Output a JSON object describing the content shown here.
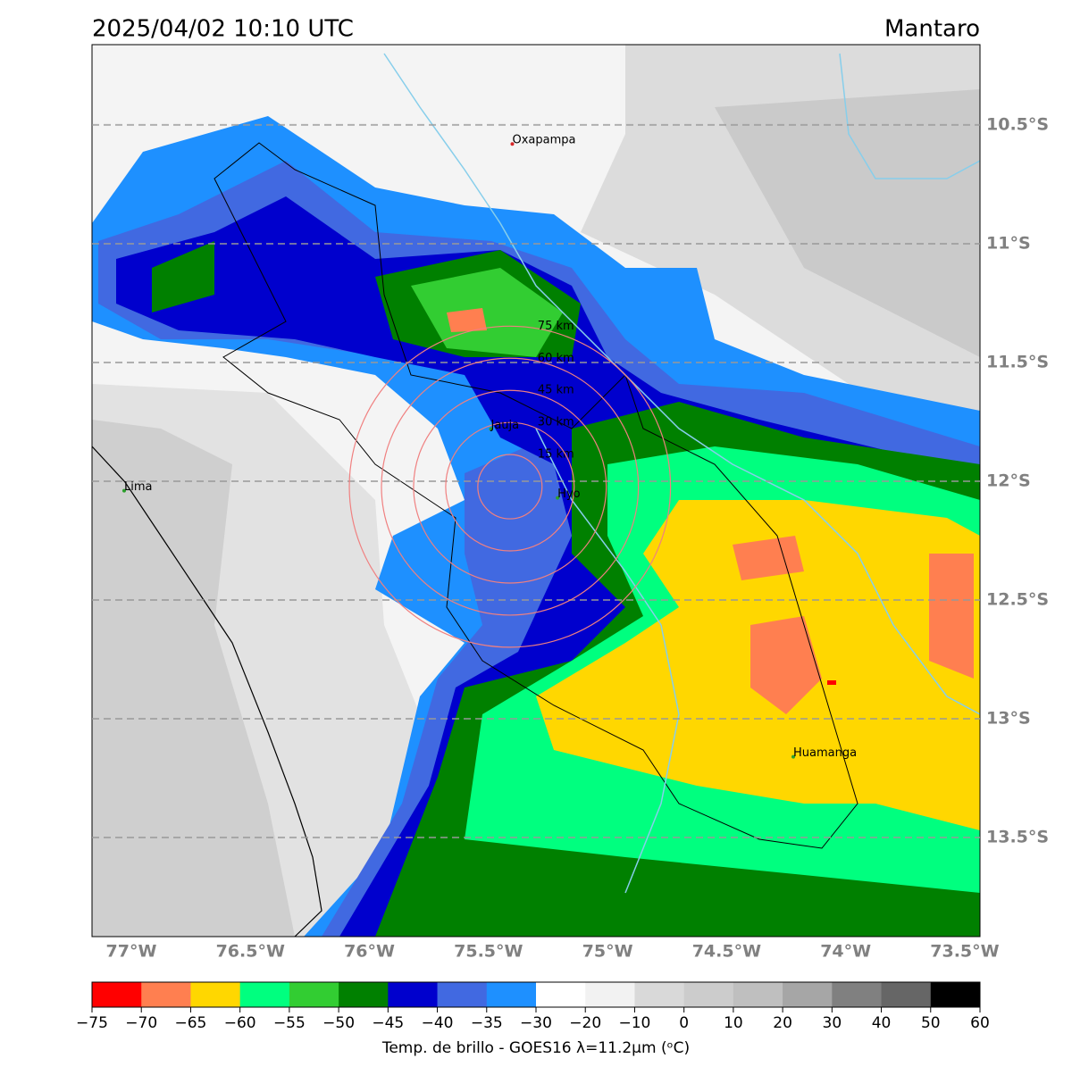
{
  "header": {
    "title": "2025/04/02 10:10 UTC",
    "region": "Mantaro"
  },
  "map": {
    "xlim": [
      -77.165,
      -73.436
    ],
    "ylim": [
      -13.917,
      -10.162
    ],
    "xticks": [
      {
        "value": -77,
        "label": "77°W"
      },
      {
        "value": -76.5,
        "label": "76.5°W"
      },
      {
        "value": -76,
        "label": "76°W"
      },
      {
        "value": -75.5,
        "label": "75.5°W"
      },
      {
        "value": -75,
        "label": "75°W"
      },
      {
        "value": -74.5,
        "label": "74.5°W"
      },
      {
        "value": -74,
        "label": "74°W"
      },
      {
        "value": -73.5,
        "label": "73.5°W"
      }
    ],
    "yticks": [
      {
        "value": -10.5,
        "label": "10.5°S"
      },
      {
        "value": -11,
        "label": "11°S"
      },
      {
        "value": -11.5,
        "label": "11.5°S"
      },
      {
        "value": -12,
        "label": "12°S"
      },
      {
        "value": -12.5,
        "label": "12.5°S"
      },
      {
        "value": -13,
        "label": "13°S"
      },
      {
        "value": -13.5,
        "label": "13.5°S"
      }
    ],
    "grid": true,
    "places": [
      {
        "name": "Oxapampa",
        "lon": -75.4,
        "lat": -10.58,
        "color": "#d62728"
      },
      {
        "name": "Jauja",
        "lon": -75.49,
        "lat": -11.78,
        "color": "#2ca02c"
      },
      {
        "name": "Hyo",
        "lon": -75.21,
        "lat": -12.07,
        "color": "#2ca02c"
      },
      {
        "name": "Lima",
        "lon": -77.03,
        "lat": -12.04,
        "color": "#2ca02c"
      },
      {
        "name": "Huamanga",
        "lon": -74.22,
        "lat": -13.16,
        "color": "#2ca02c"
      }
    ],
    "rings": {
      "lon": -75.41,
      "lat": -12.023,
      "color": "#f08080",
      "radii": [
        {
          "value": 15,
          "label": "15 km"
        },
        {
          "value": 30,
          "label": "30 km"
        },
        {
          "value": 45,
          "label": "45 km"
        },
        {
          "value": 60,
          "label": "60 km"
        },
        {
          "value": 75,
          "label": "75 km"
        }
      ]
    }
  },
  "colorbar": {
    "ticks": [
      {
        "value": -75,
        "label": "−75"
      },
      {
        "value": -70,
        "label": "−70"
      },
      {
        "value": -65,
        "label": "−65"
      },
      {
        "value": -60,
        "label": "−60"
      },
      {
        "value": -55,
        "label": "−55"
      },
      {
        "value": -50,
        "label": "−50"
      },
      {
        "value": -45,
        "label": "−45"
      },
      {
        "value": -40,
        "label": "−40"
      },
      {
        "value": -35,
        "label": "−35"
      },
      {
        "value": -30,
        "label": "−30"
      },
      {
        "value": -20,
        "label": "−20"
      },
      {
        "value": -10,
        "label": "−10"
      },
      0,
      10,
      20,
      30,
      40,
      50,
      60
    ],
    "colors": [
      "#ff0000",
      "#ff7f50",
      "#ffd700",
      "#00ff7f",
      "#32cd32",
      "#008000",
      "#0000cd",
      "#4169e1",
      "#1e90ff",
      "#ffffff",
      "#f2f2f2",
      "#d9d9d9",
      "#cccccc",
      "#bfbfbf",
      "#a6a6a6",
      "#808080",
      "#666666",
      "#000000"
    ],
    "label": "Temp. de brillo - GOES16 λ=11.2μm (ᵒC)"
  }
}
